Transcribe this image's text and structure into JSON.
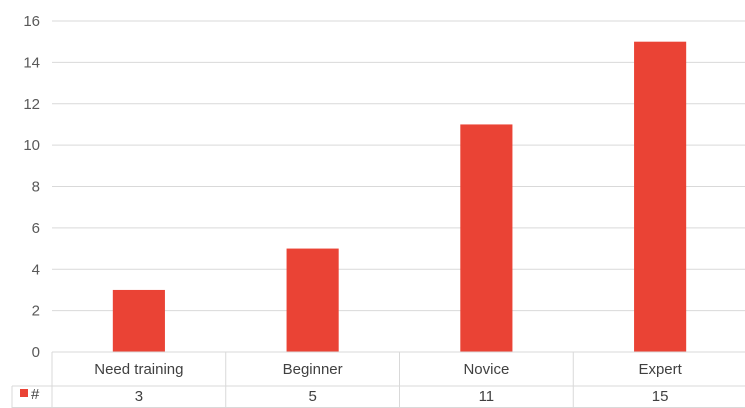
{
  "chart_data": {
    "type": "bar",
    "categories": [
      "Need training",
      "Beginner",
      "Novice",
      "Expert"
    ],
    "series": [
      {
        "name": "#",
        "values": [
          3,
          5,
          11,
          15
        ],
        "color": "#ea4335"
      }
    ],
    "ylim": [
      0,
      16
    ],
    "yticks": [
      0,
      2,
      4,
      6,
      8,
      10,
      12,
      14,
      16
    ],
    "grid": true,
    "legend": "data-table-left",
    "data_table": true
  }
}
